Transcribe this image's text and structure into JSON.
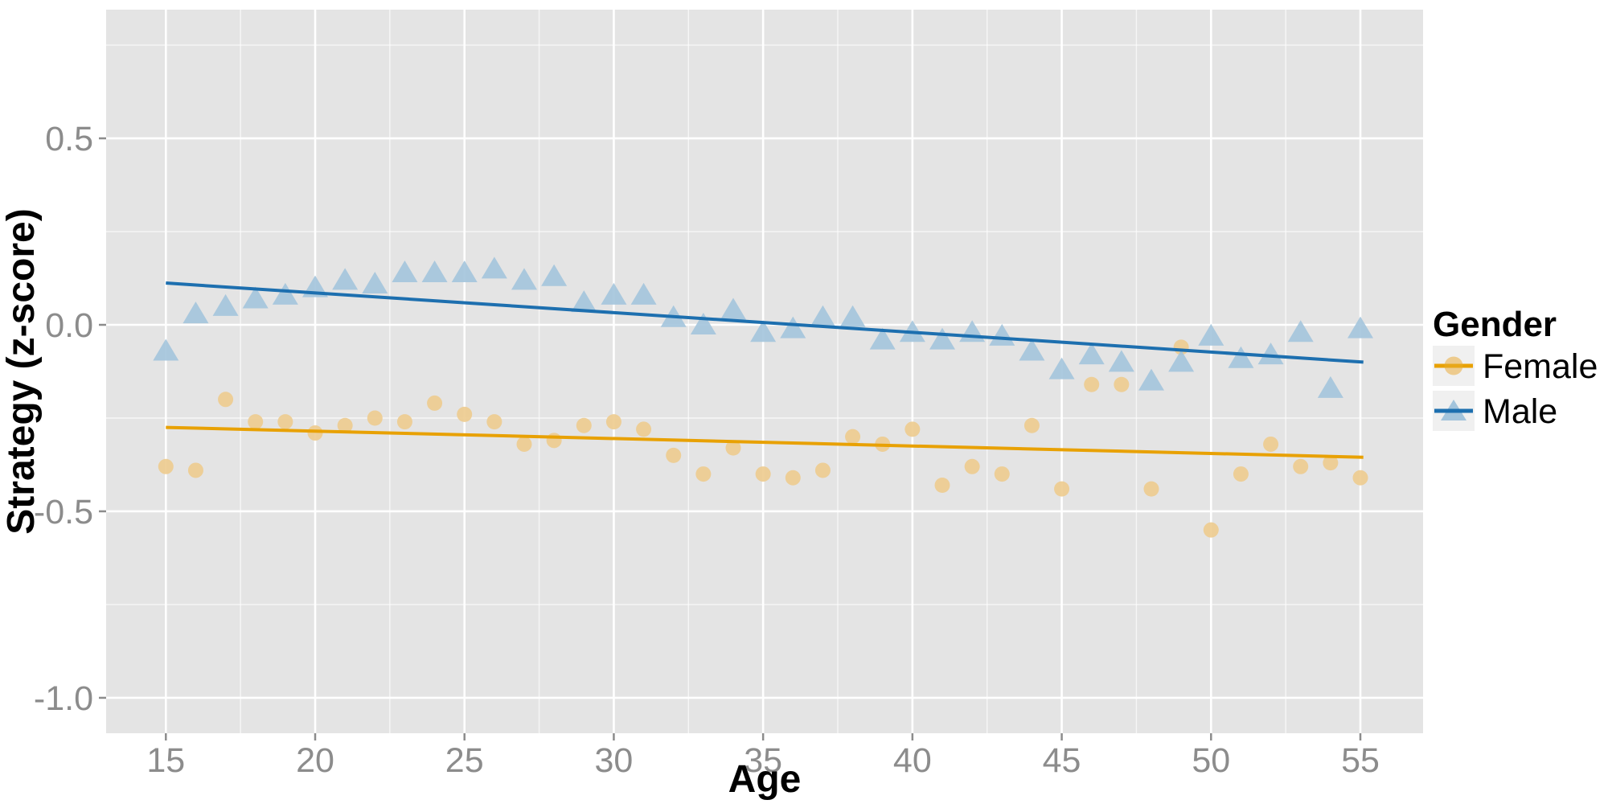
{
  "chart_data": {
    "type": "scatter",
    "title": "",
    "xlabel": "Age",
    "ylabel": "Strategy (z-score)",
    "xlim": [
      13,
      57.1
    ],
    "ylim": [
      -1.095,
      0.845
    ],
    "x_ticks": [
      15,
      20,
      25,
      30,
      35,
      40,
      45,
      50,
      55
    ],
    "x_tick_labels": [
      "15",
      "20",
      "25",
      "30",
      "35",
      "40",
      "45",
      "50",
      "55"
    ],
    "y_ticks": [
      0.5,
      0.0,
      -0.5,
      -1.0
    ],
    "y_tick_labels": [
      "0.5",
      "0.0",
      "-0.5",
      "-1.0"
    ],
    "grid": {
      "major": true,
      "minor": true
    },
    "legend": {
      "title": "Gender",
      "position": "right",
      "entries": [
        {
          "label": "Female",
          "marker": "circle",
          "point_color": "#EDCB8E",
          "line_color": "#E8A104"
        },
        {
          "label": "Male",
          "marker": "triangle",
          "point_color": "#A3C4DC",
          "line_color": "#1D6FAF"
        }
      ]
    },
    "x": [
      15,
      16,
      17,
      18,
      19,
      20,
      21,
      22,
      23,
      24,
      25,
      26,
      27,
      28,
      29,
      30,
      31,
      32,
      33,
      34,
      35,
      36,
      37,
      38,
      39,
      40,
      41,
      42,
      43,
      44,
      45,
      46,
      47,
      48,
      49,
      50,
      51,
      52,
      53,
      54,
      55
    ],
    "series": [
      {
        "name": "Female",
        "marker": "circle",
        "point_color": "#EDCB8E",
        "line_color": "#E8A104",
        "values": [
          -0.38,
          -0.39,
          -0.2,
          -0.26,
          -0.26,
          -0.29,
          -0.27,
          -0.25,
          -0.26,
          -0.21,
          -0.24,
          -0.26,
          -0.32,
          -0.31,
          -0.27,
          -0.26,
          -0.28,
          -0.35,
          -0.4,
          -0.33,
          -0.4,
          -0.41,
          -0.39,
          -0.3,
          -0.32,
          -0.28,
          -0.43,
          -0.38,
          -0.4,
          -0.27,
          -0.44,
          -0.16,
          -0.16,
          -0.44,
          -0.06,
          -0.55,
          -0.4,
          -0.32,
          -0.38,
          -0.37,
          -0.41
        ],
        "trend": {
          "x": [
            15,
            55.1
          ],
          "y": [
            -0.275,
            -0.355
          ]
        }
      },
      {
        "name": "Male",
        "marker": "triangle",
        "point_color": "#A3C4DC",
        "line_color": "#1D6FAF",
        "values": [
          -0.07,
          0.03,
          0.05,
          0.07,
          0.08,
          0.1,
          0.12,
          0.11,
          0.14,
          0.14,
          0.14,
          0.15,
          0.12,
          0.13,
          0.06,
          0.08,
          0.08,
          0.02,
          0.0,
          0.04,
          -0.02,
          -0.01,
          0.02,
          0.02,
          -0.04,
          -0.02,
          -0.04,
          -0.02,
          -0.03,
          -0.07,
          -0.12,
          -0.08,
          -0.1,
          -0.15,
          -0.1,
          -0.03,
          -0.09,
          -0.08,
          -0.02,
          -0.17,
          -0.01
        ],
        "trend": {
          "x": [
            15,
            55.1
          ],
          "y": [
            0.112,
            -0.1
          ]
        }
      }
    ]
  },
  "style": {
    "panel_bg": "#E4E4E4",
    "grid_color": "#FFFFFF",
    "tick_color": "#8C8C8C",
    "tick_label_color": "#8C8C8C",
    "axis_title_color": "#000000",
    "legend_key_bg": "#F0F0F0"
  }
}
